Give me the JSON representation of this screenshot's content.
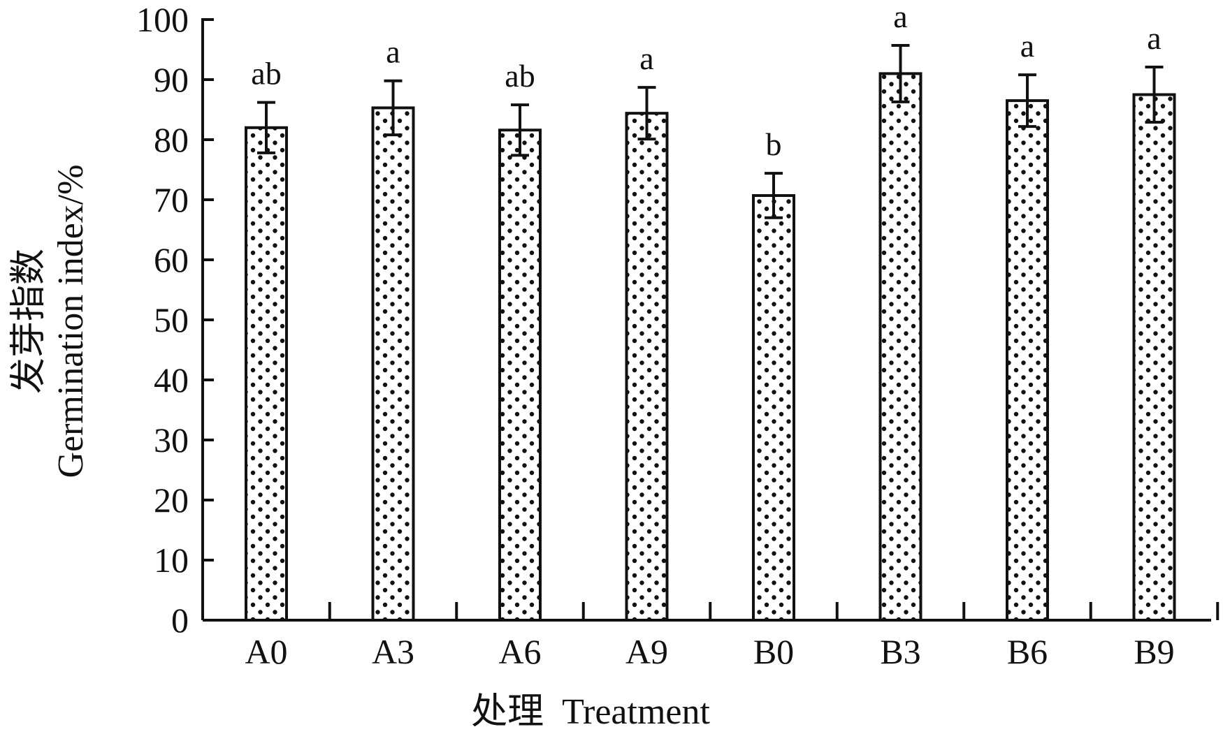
{
  "chart_data": {
    "type": "bar",
    "categories": [
      "A0",
      "A3",
      "A6",
      "A9",
      "B0",
      "B3",
      "B6",
      "B9"
    ],
    "values": [
      82,
      85.3,
      81.6,
      84.4,
      70.7,
      91,
      86.5,
      87.5
    ],
    "errors": [
      4.2,
      4.5,
      4.2,
      4.3,
      3.7,
      4.7,
      4.3,
      4.6
    ],
    "significance": [
      "ab",
      "a",
      "ab",
      "a",
      "b",
      "a",
      "a",
      "a"
    ],
    "xlabel": "处理  Treatment",
    "ylabel_line1": "发芽指数",
    "ylabel_line2": "Germination index/%",
    "ylim": [
      0,
      100
    ],
    "yticks": [
      0,
      10,
      20,
      30,
      40,
      50,
      60,
      70,
      80,
      90,
      100
    ],
    "bar_pattern": "dotted",
    "colors": {
      "bar_fill": "#ffffff",
      "bar_stroke": "#111111",
      "dot": "#111111",
      "axis": "#111111"
    }
  }
}
